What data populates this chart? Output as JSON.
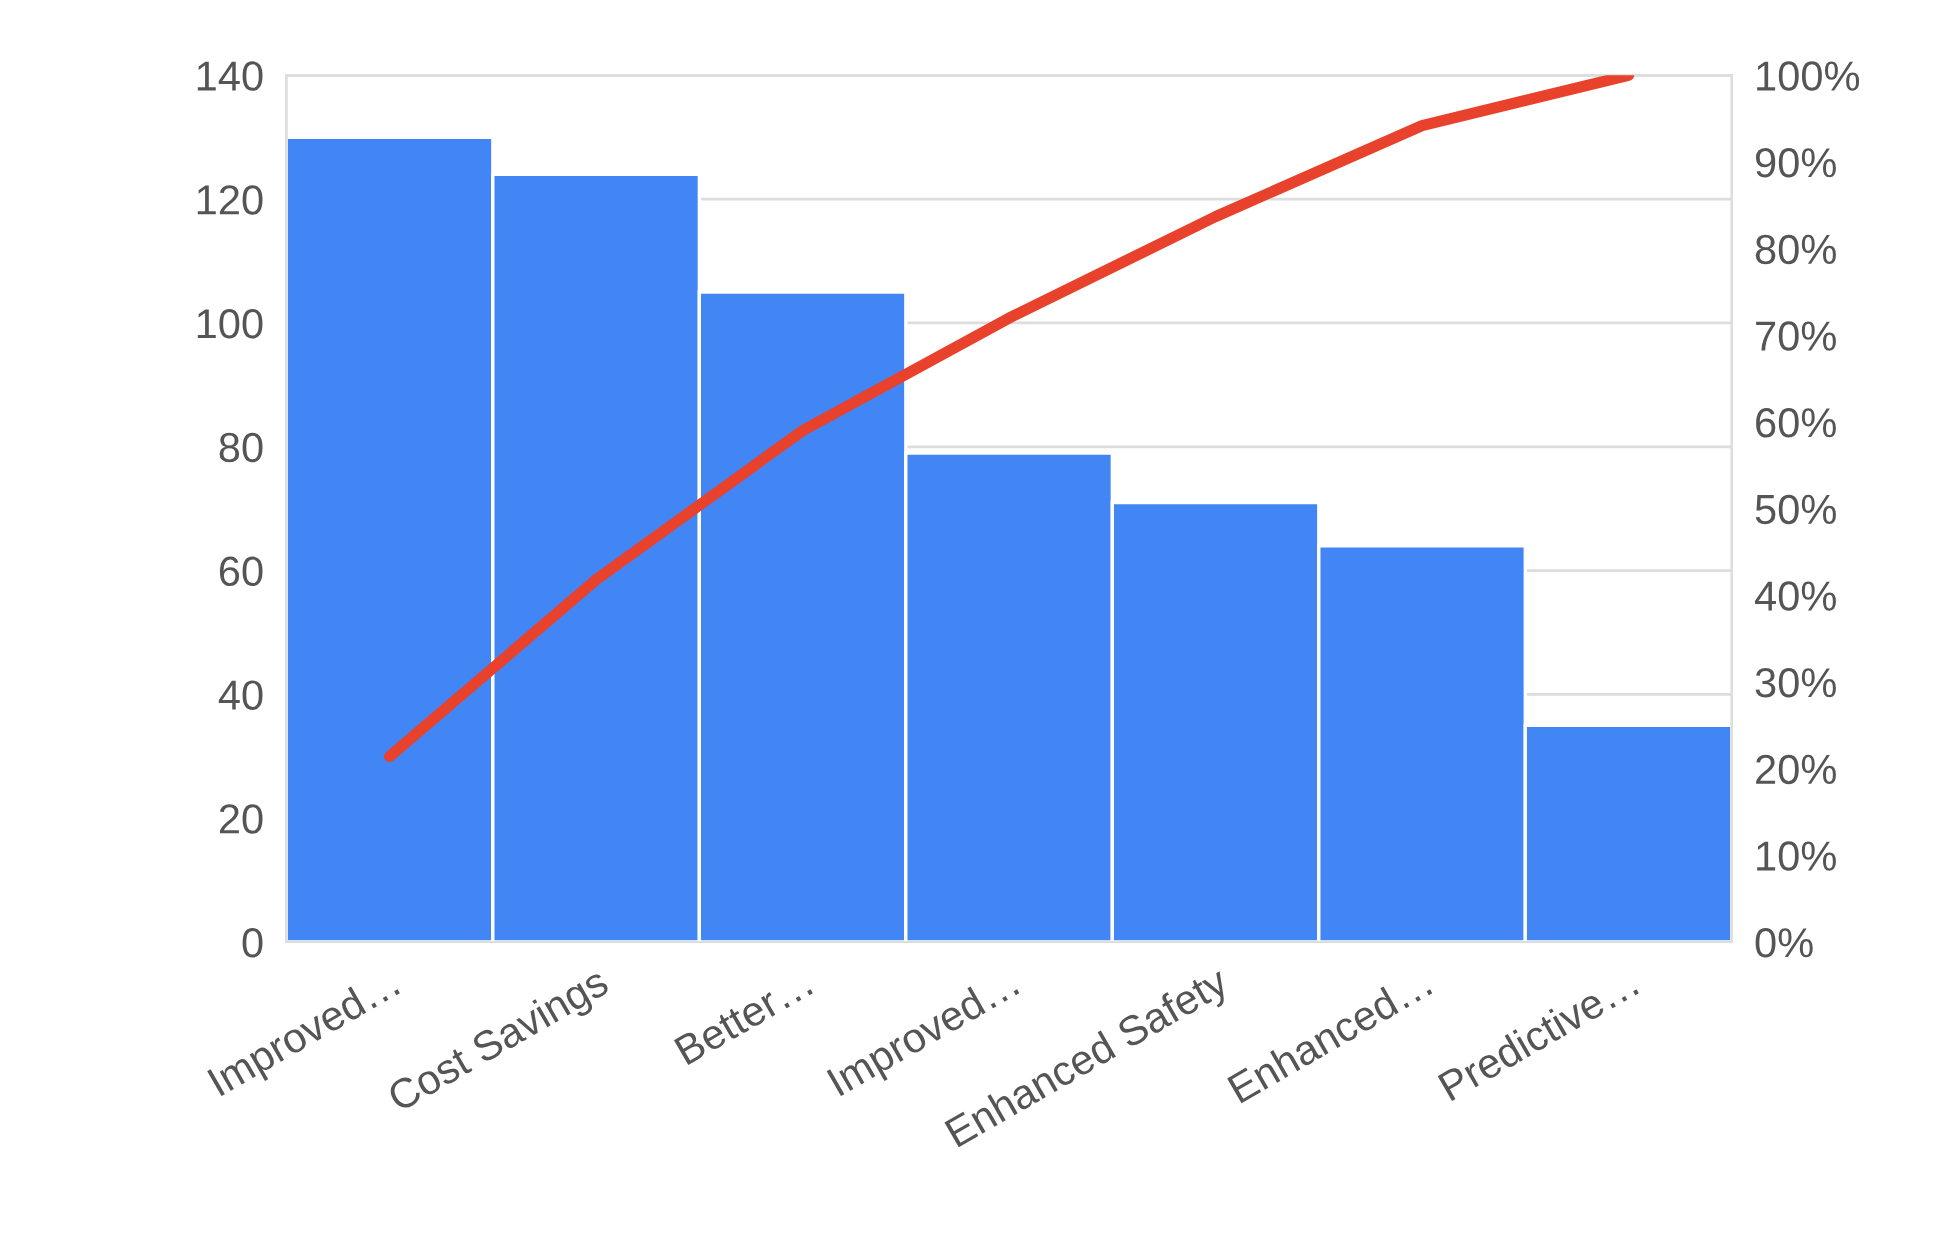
{
  "chart_data": {
    "type": "bar",
    "categories": [
      "Improved…",
      "Cost Savings",
      "Better…",
      "Improved…",
      "Enhanced Safety",
      "Enhanced…",
      "Predictive…"
    ],
    "series": [
      {
        "color": "#4285f4",
        "values": [
          130,
          124,
          105,
          79,
          71,
          64,
          35
        ]
      },
      {
        "type": "line",
        "axis": "y2",
        "color": "#e8412c",
        "values": [
          21.4,
          41.8,
          59.0,
          72.0,
          83.7,
          94.2,
          100
        ]
      }
    ],
    "ylim": [
      0,
      140
    ],
    "yticks": [
      0,
      20,
      40,
      60,
      80,
      100,
      120,
      140
    ],
    "y2lim": [
      0,
      100
    ],
    "y2ticks": [
      {
        "value": 0,
        "label": "0%"
      },
      {
        "value": 10,
        "label": "10%"
      },
      {
        "value": 20,
        "label": "20%"
      },
      {
        "value": 30,
        "label": "30%"
      },
      {
        "value": 40,
        "label": "40%"
      },
      {
        "value": 50,
        "label": "50%"
      },
      {
        "value": 60,
        "label": "60%"
      },
      {
        "value": 70,
        "label": "70%"
      },
      {
        "value": 80,
        "label": "80%"
      },
      {
        "value": 90,
        "label": "90%"
      },
      {
        "value": 100,
        "label": "100%"
      }
    ],
    "grid": "y",
    "marker": "none",
    "line_style": "solid"
  }
}
